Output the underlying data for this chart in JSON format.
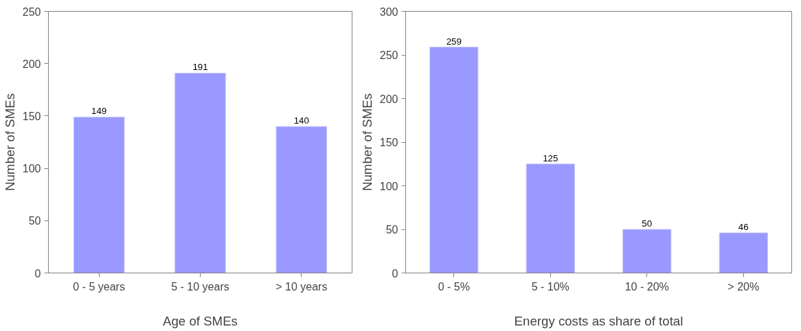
{
  "chart_data": [
    {
      "type": "bar",
      "xlabel": "Age of SMEs",
      "ylabel": "Number of SMEs",
      "categories": [
        "0 - 5 years",
        "5 - 10 years",
        "> 10 years"
      ],
      "values": [
        149,
        191,
        140
      ],
      "color": "#9999ff",
      "ylim": [
        0,
        250
      ],
      "yticks": [
        0,
        50,
        100,
        150,
        200,
        250
      ],
      "data_labels": true,
      "grid": false
    },
    {
      "type": "bar",
      "xlabel": "Energy costs as share of total",
      "ylabel": "Number of SMEs",
      "categories": [
        "0 - 5%",
        "5 - 10%",
        "10 - 20%",
        "> 20%"
      ],
      "values": [
        259,
        125,
        50,
        46
      ],
      "color": "#9999ff",
      "ylim": [
        0,
        300
      ],
      "yticks": [
        0,
        50,
        100,
        150,
        200,
        250,
        300
      ],
      "data_labels": true,
      "grid": false
    }
  ]
}
